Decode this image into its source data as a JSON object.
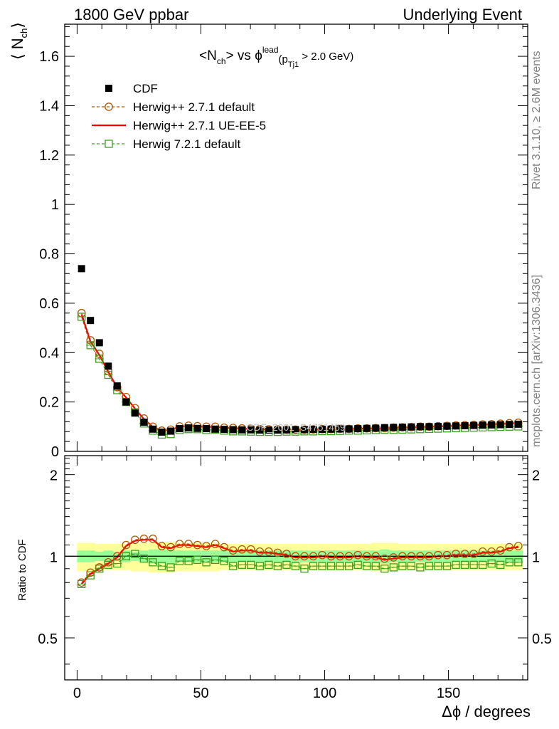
{
  "header": {
    "left_title": "1800 GeV ppbar",
    "right_title": "Underlying Event"
  },
  "side_labels": {
    "rivet": "Rivet 3.1.10, ≥ 2.6M events",
    "mcplots": "mcplots.cern.ch [arXiv:1306.3436]"
  },
  "watermark": "CDF_2001_S4751469",
  "chart_data": [
    {
      "type": "scatter",
      "title_parts": {
        "n": "N",
        "ch": "ch",
        "vs": "> vs ",
        "phi": "ϕ",
        "lead": "lead",
        "p": "(p",
        "tj1": "Tj1",
        "cut": " > 2.0 GeV)"
      },
      "ylabel_parts": {
        "n": "N",
        "ch": "ch"
      },
      "xlim": [
        -5,
        182
      ],
      "ylim": [
        0,
        1.73
      ],
      "yticks": [
        0,
        0.2,
        0.4,
        0.6,
        0.8,
        1,
        1.2,
        1.4,
        1.6
      ],
      "ytick_labels": [
        "0",
        "0.2",
        "0.4",
        "0.6",
        "0.8",
        "1",
        "1.2",
        "1.4",
        "1.6"
      ],
      "legend_position": "top-left",
      "x": [
        1.8,
        5.4,
        9,
        12.6,
        16.2,
        19.8,
        23.4,
        27,
        30.6,
        34.2,
        37.8,
        41.4,
        45,
        48.6,
        52.2,
        55.8,
        59.4,
        63,
        66.6,
        70.2,
        73.8,
        77.4,
        81,
        84.6,
        88.2,
        91.8,
        95.4,
        99,
        102.6,
        106.2,
        109.8,
        113.4,
        117,
        120.6,
        124.2,
        127.8,
        131.4,
        135,
        138.6,
        142.2,
        145.8,
        149.4,
        153,
        156.6,
        160.2,
        163.8,
        167.4,
        171,
        174.6,
        178.2
      ],
      "series": [
        {
          "name": "CDF",
          "color": "#000000",
          "values": [
            0.74,
            0.53,
            0.44,
            0.345,
            0.265,
            0.2,
            0.155,
            0.118,
            0.09,
            0.078,
            0.082,
            0.092,
            0.095,
            0.093,
            0.092,
            0.09,
            0.089,
            0.088,
            0.087,
            0.087,
            0.086,
            0.086,
            0.086,
            0.087,
            0.088,
            0.088,
            0.089,
            0.089,
            0.09,
            0.091,
            0.091,
            0.092,
            0.093,
            0.094,
            0.096,
            0.097,
            0.098,
            0.099,
            0.1,
            0.1,
            0.101,
            0.102,
            0.103,
            0.104,
            0.105,
            0.106,
            0.107,
            0.108,
            0.109,
            0.11
          ]
        },
        {
          "name": "Herwig++ 2.7.1 default",
          "color": "#b35806",
          "values": [
            0.56,
            0.45,
            0.395,
            0.325,
            0.26,
            0.22,
            0.175,
            0.133,
            0.1,
            0.084,
            0.088,
            0.101,
            0.104,
            0.102,
            0.1,
            0.1,
            0.096,
            0.095,
            0.093,
            0.092,
            0.09,
            0.089,
            0.089,
            0.088,
            0.088,
            0.088,
            0.089,
            0.09,
            0.09,
            0.091,
            0.091,
            0.093,
            0.093,
            0.094,
            0.094,
            0.096,
            0.097,
            0.098,
            0.1,
            0.1,
            0.102,
            0.103,
            0.105,
            0.106,
            0.107,
            0.109,
            0.11,
            0.112,
            0.114,
            0.116
          ]
        },
        {
          "name": "Herwig++ 2.7.1 UE-EE-5",
          "color": "#ff0000",
          "values": [
            0.555,
            0.445,
            0.39,
            0.322,
            0.258,
            0.218,
            0.173,
            0.131,
            0.099,
            0.083,
            0.087,
            0.1,
            0.103,
            0.101,
            0.099,
            0.099,
            0.095,
            0.094,
            0.092,
            0.091,
            0.089,
            0.088,
            0.088,
            0.087,
            0.087,
            0.087,
            0.088,
            0.089,
            0.089,
            0.09,
            0.09,
            0.092,
            0.092,
            0.093,
            0.093,
            0.095,
            0.096,
            0.097,
            0.099,
            0.099,
            0.101,
            0.102,
            0.104,
            0.105,
            0.106,
            0.108,
            0.109,
            0.111,
            0.113,
            0.115
          ]
        },
        {
          "name": "Herwig 7.2.1 default",
          "color": "#3ca01e",
          "values": [
            0.545,
            0.43,
            0.375,
            0.31,
            0.248,
            0.2,
            0.158,
            0.113,
            0.084,
            0.068,
            0.07,
            0.086,
            0.09,
            0.09,
            0.086,
            0.088,
            0.084,
            0.081,
            0.081,
            0.08,
            0.079,
            0.079,
            0.079,
            0.08,
            0.08,
            0.081,
            0.081,
            0.082,
            0.082,
            0.083,
            0.084,
            0.084,
            0.085,
            0.086,
            0.087,
            0.087,
            0.088,
            0.089,
            0.09,
            0.091,
            0.092,
            0.093,
            0.094,
            0.095,
            0.096,
            0.097,
            0.098,
            0.099,
            0.1,
            0.101
          ]
        }
      ]
    },
    {
      "type": "scatter",
      "ylabel": "Ratio to CDF",
      "xlabel_parts": {
        "dphi": "Δϕ",
        "unit": " / degrees"
      },
      "xlim": [
        -5,
        182
      ],
      "ylim": [
        0.35,
        2.35
      ],
      "xticks": [
        0,
        50,
        100,
        150
      ],
      "xtick_labels": [
        "0",
        "50",
        "100",
        "150"
      ],
      "yticks": [
        0.5,
        1,
        2
      ],
      "ytick_labels": [
        "0.5",
        "1",
        "2"
      ],
      "band_inner_halfwidth": [
        0.05,
        0.05,
        0.04,
        0.05,
        0.04,
        0.05,
        0.04,
        0.05,
        0.06,
        0.06,
        0.06,
        0.05,
        0.05,
        0.05,
        0.05,
        0.05,
        0.05,
        0.05,
        0.05,
        0.05,
        0.05,
        0.05,
        0.05,
        0.05,
        0.05,
        0.05,
        0.05,
        0.05,
        0.05,
        0.05,
        0.05,
        0.05,
        0.05,
        0.05,
        0.06,
        0.05,
        0.05,
        0.05,
        0.05,
        0.05,
        0.05,
        0.05,
        0.05,
        0.05,
        0.05,
        0.05,
        0.05,
        0.05,
        0.05,
        0.05
      ],
      "band_outer_halfwidth": [
        0.12,
        0.12,
        0.11,
        0.11,
        0.11,
        0.11,
        0.12,
        0.12,
        0.13,
        0.13,
        0.13,
        0.12,
        0.12,
        0.12,
        0.12,
        0.12,
        0.11,
        0.11,
        0.11,
        0.11,
        0.11,
        0.11,
        0.11,
        0.11,
        0.11,
        0.11,
        0.11,
        0.11,
        0.11,
        0.11,
        0.11,
        0.11,
        0.11,
        0.12,
        0.12,
        0.12,
        0.11,
        0.11,
        0.11,
        0.11,
        0.11,
        0.11,
        0.11,
        0.11,
        0.11,
        0.11,
        0.11,
        0.11,
        0.11,
        0.11
      ],
      "ratio_herwigpp_default": [
        0.8,
        0.87,
        0.91,
        0.95,
        1.0,
        1.1,
        1.15,
        1.16,
        1.16,
        1.09,
        1.08,
        1.11,
        1.11,
        1.1,
        1.09,
        1.11,
        1.08,
        1.05,
        1.06,
        1.06,
        1.04,
        1.04,
        1.03,
        1.02,
        1.0,
        1.0,
        1.0,
        1.01,
        1.0,
        1.0,
        1.0,
        1.01,
        1.0,
        1.0,
        0.98,
        0.99,
        1.0,
        1.0,
        1.0,
        1.0,
        1.01,
        1.01,
        1.02,
        1.02,
        1.02,
        1.04,
        1.04,
        1.05,
        1.08,
        1.09
      ],
      "ratio_herwigpp_ueee5": [
        0.79,
        0.86,
        0.9,
        0.94,
        0.99,
        1.09,
        1.14,
        1.15,
        1.15,
        1.08,
        1.07,
        1.1,
        1.1,
        1.09,
        1.08,
        1.1,
        1.07,
        1.04,
        1.05,
        1.05,
        1.03,
        1.03,
        1.02,
        1.01,
        0.99,
        0.99,
        0.99,
        1.0,
        0.99,
        0.99,
        0.99,
        1.0,
        0.99,
        0.99,
        0.97,
        0.98,
        0.99,
        0.99,
        0.99,
        0.99,
        1.0,
        1.0,
        1.01,
        1.01,
        1.01,
        1.03,
        1.03,
        1.04,
        1.07,
        1.08
      ],
      "ratio_herwig7_default": [
        0.79,
        0.85,
        0.9,
        0.93,
        0.94,
        1.0,
        1.02,
        0.98,
        0.95,
        0.92,
        0.91,
        0.96,
        0.96,
        0.97,
        0.95,
        0.97,
        0.96,
        0.92,
        0.93,
        0.93,
        0.92,
        0.93,
        0.92,
        0.93,
        0.92,
        0.9,
        0.92,
        0.92,
        0.92,
        0.92,
        0.92,
        0.93,
        0.92,
        0.92,
        0.9,
        0.91,
        0.92,
        0.92,
        0.91,
        0.92,
        0.92,
        0.92,
        0.93,
        0.93,
        0.93,
        0.93,
        0.94,
        0.93,
        0.95,
        0.95
      ]
    }
  ]
}
